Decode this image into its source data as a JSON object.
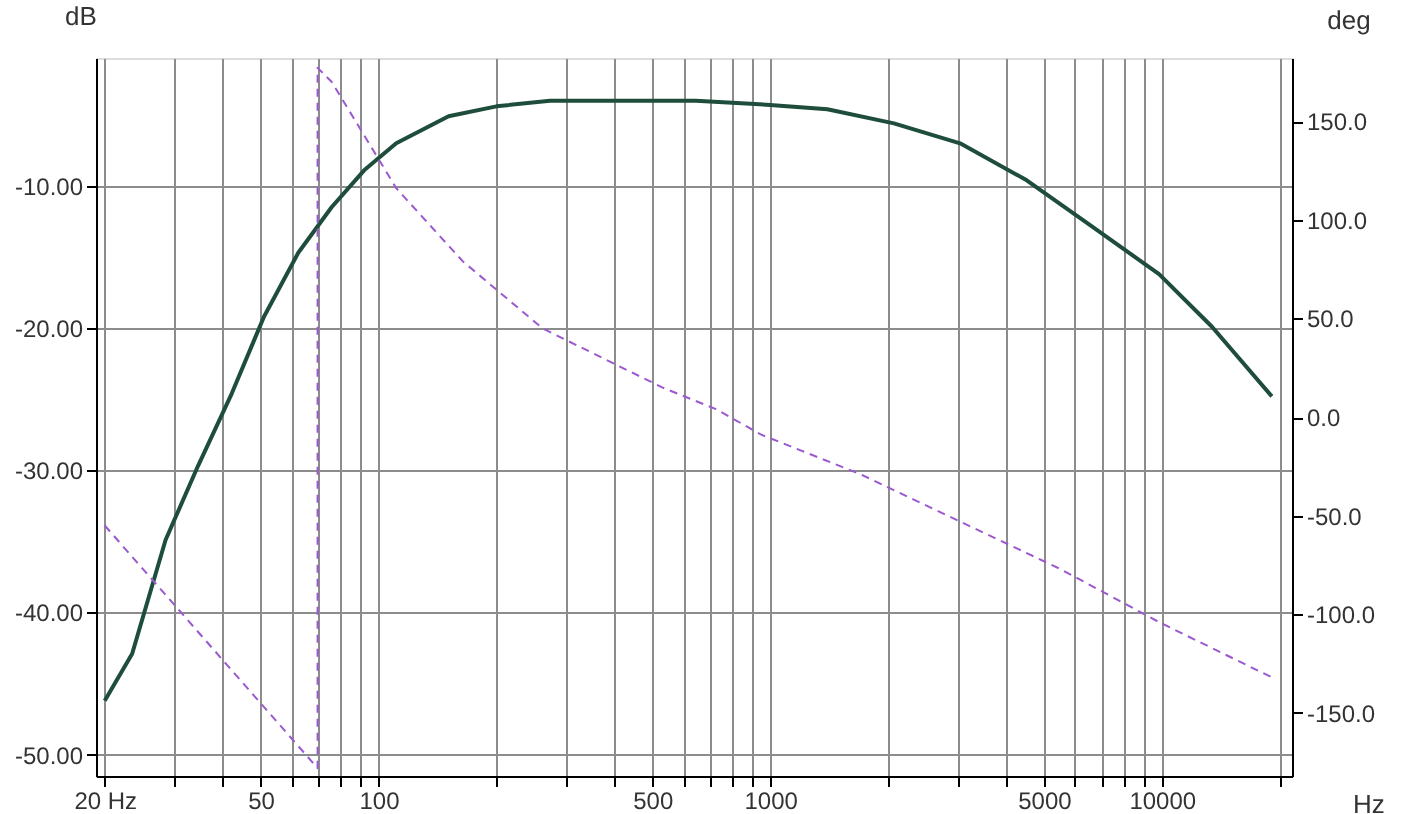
{
  "chart_data": {
    "type": "line",
    "xlabel": "Hz",
    "ylabel": "dB",
    "y2label": "deg",
    "xlim": [
      19,
      21500
    ],
    "ylim": [
      -51.5,
      -1
    ],
    "y2lim": [
      -182,
      182
    ],
    "log": "x",
    "xticks": [
      {
        "value": 20,
        "label": "20 Hz"
      },
      {
        "value": 30,
        "label": null
      },
      {
        "value": 40,
        "label": null
      },
      50,
      {
        "value": 60,
        "label": null
      },
      {
        "value": 70,
        "label": null
      },
      {
        "value": 80,
        "label": null
      },
      {
        "value": 90,
        "label": null
      },
      100,
      {
        "value": 200,
        "label": null
      },
      {
        "value": 300,
        "label": null
      },
      {
        "value": 400,
        "label": null
      },
      500,
      {
        "value": 600,
        "label": null
      },
      {
        "value": 700,
        "label": null
      },
      {
        "value": 800,
        "label": null
      },
      {
        "value": 900,
        "label": null
      },
      1000,
      {
        "value": 2000,
        "label": null
      },
      {
        "value": 3000,
        "label": null
      },
      {
        "value": 4000,
        "label": null
      },
      5000,
      {
        "value": 6000,
        "label": null
      },
      {
        "value": 7000,
        "label": null
      },
      {
        "value": 8000,
        "label": null
      },
      {
        "value": 9000,
        "label": null
      },
      10000,
      {
        "value": 20000,
        "label": null
      }
    ],
    "yticks": [
      {
        "value": -10,
        "label": "-10.00"
      },
      {
        "value": -20,
        "label": "-20.00"
      },
      {
        "value": -30,
        "label": "-30.00"
      },
      {
        "value": -40,
        "label": "-40.00"
      },
      {
        "value": -50,
        "label": "-50.00"
      }
    ],
    "y2ticks": [
      {
        "value": 150,
        "label": "150.0"
      },
      {
        "value": 100,
        "label": "100.0"
      },
      {
        "value": 50,
        "label": "50.0"
      },
      {
        "value": 0,
        "label": "0.0"
      },
      {
        "value": -50,
        "label": "-50.0"
      },
      {
        "value": -100,
        "label": "-100.0"
      },
      {
        "value": -150,
        "label": "-150.0"
      }
    ],
    "grid": true,
    "marker": "none",
    "series": [
      {
        "color": "#1e4d3b",
        "line_style": "solid",
        "x": [
          20,
          23.5,
          28.6,
          34.6,
          42.2,
          51,
          62.4,
          75.9,
          91.9,
          111,
          151,
          200,
          274,
          646,
          1000,
          1400,
          2070,
          3055,
          4520,
          6670,
          9840,
          13430,
          19100
        ],
        "values": [
          -46.2,
          -42.9,
          -34.9,
          -29.7,
          -24.6,
          -19.2,
          -14.7,
          -11.5,
          -8.9,
          -7.0,
          -5.1,
          -4.4,
          -4.0,
          -4.0,
          -4.3,
          -4.6,
          -5.6,
          -7.0,
          -9.6,
          -12.9,
          -16.2,
          -19.9,
          -24.8
        ]
      },
      {
        "color": "#9b59d0",
        "line_style": "dashed",
        "axis": "y2",
        "x": [
          20,
          69.9,
          69.9,
          75.9,
          111,
          164,
          262,
          530,
          727,
          950,
          1700,
          3055,
          5500,
          9840,
          19100
        ],
        "values": [
          -55,
          -178,
          177,
          170,
          116,
          79,
          45,
          15,
          4,
          -9,
          -29,
          -53,
          -77,
          -104,
          -132
        ]
      }
    ]
  }
}
